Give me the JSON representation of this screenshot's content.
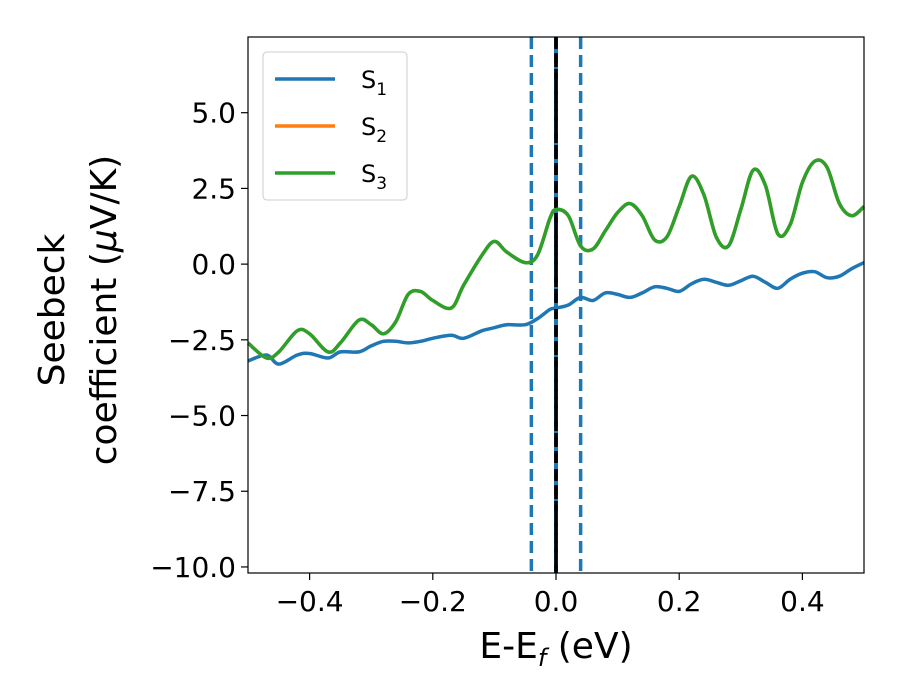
{
  "chart_data": {
    "type": "line",
    "xlabel": "E-E",
    "xlabel_sub": "f",
    "xlabel_unit": " (eV)",
    "ylabel_line1": "Seebeck",
    "ylabel_line2": "coefficient  (",
    "ylabel_mu": "μ",
    "ylabel_unit": "V/K)",
    "xlim": [
      -0.5,
      0.5
    ],
    "ylim": [
      -10.2,
      7.5
    ],
    "xticks": [
      -0.4,
      -0.2,
      0.0,
      0.2,
      0.4
    ],
    "xtick_labels": [
      "−0.4",
      "−0.2",
      "0.0",
      "0.2",
      "0.4"
    ],
    "yticks": [
      -10.0,
      -7.5,
      -5.0,
      -2.5,
      0.0,
      2.5,
      5.0
    ],
    "ytick_labels": [
      "−10.0",
      "−7.5",
      "−5.0",
      "−2.5",
      "0.0",
      "2.5",
      "5.0"
    ],
    "grid": false,
    "legend_position": "top-left",
    "vlines": [
      {
        "x": -0.04,
        "style": "dashed",
        "color": "#1f77b4"
      },
      {
        "x": 0.0,
        "style": "solid",
        "color": "#1f77b4"
      },
      {
        "x": 0.0,
        "style": "dashed",
        "color": "#000000"
      },
      {
        "x": 0.04,
        "style": "dashed",
        "color": "#1f77b4"
      }
    ],
    "series": [
      {
        "name": "S",
        "sub": "1",
        "color": "#1f77b4",
        "x": [
          -0.5,
          -0.47,
          -0.45,
          -0.42,
          -0.4,
          -0.37,
          -0.35,
          -0.32,
          -0.3,
          -0.28,
          -0.26,
          -0.24,
          -0.22,
          -0.2,
          -0.17,
          -0.15,
          -0.12,
          -0.1,
          -0.08,
          -0.05,
          -0.03,
          -0.01,
          0.0,
          0.02,
          0.04,
          0.06,
          0.08,
          0.1,
          0.12,
          0.14,
          0.16,
          0.18,
          0.2,
          0.22,
          0.24,
          0.26,
          0.28,
          0.3,
          0.32,
          0.34,
          0.36,
          0.38,
          0.4,
          0.42,
          0.44,
          0.46,
          0.48,
          0.5
        ],
        "y": [
          -3.2,
          -3.0,
          -3.3,
          -3.0,
          -2.95,
          -3.1,
          -2.9,
          -2.9,
          -2.7,
          -2.55,
          -2.55,
          -2.6,
          -2.55,
          -2.45,
          -2.35,
          -2.45,
          -2.2,
          -2.1,
          -2.0,
          -2.0,
          -1.8,
          -1.5,
          -1.45,
          -1.35,
          -1.1,
          -1.2,
          -0.95,
          -1.0,
          -1.1,
          -0.95,
          -0.75,
          -0.8,
          -0.9,
          -0.65,
          -0.5,
          -0.6,
          -0.7,
          -0.55,
          -0.4,
          -0.6,
          -0.8,
          -0.5,
          -0.3,
          -0.25,
          -0.45,
          -0.4,
          -0.15,
          0.05
        ]
      },
      {
        "name": "S",
        "sub": "2",
        "color": "#ff7f0e",
        "x": [
          -0.5,
          -0.47,
          -0.45,
          -0.42,
          -0.4,
          -0.37,
          -0.35,
          -0.32,
          -0.3,
          -0.28,
          -0.26,
          -0.24,
          -0.22,
          -0.2,
          -0.17,
          -0.15,
          -0.12,
          -0.1,
          -0.08,
          -0.05,
          -0.03,
          -0.01,
          0.0,
          0.02,
          0.04,
          0.06,
          0.08,
          0.1,
          0.12,
          0.14,
          0.16,
          0.18,
          0.2,
          0.22,
          0.24,
          0.26,
          0.28,
          0.3,
          0.32,
          0.34,
          0.36,
          0.38,
          0.4,
          0.42,
          0.44,
          0.46,
          0.48,
          0.5
        ],
        "y": [
          -2.6,
          -3.1,
          -2.9,
          -2.2,
          -2.3,
          -2.9,
          -2.6,
          -1.85,
          -2.0,
          -2.3,
          -1.9,
          -1.0,
          -0.9,
          -1.2,
          -1.45,
          -0.7,
          0.3,
          0.75,
          0.4,
          0.05,
          0.3,
          1.5,
          1.8,
          1.6,
          0.6,
          0.5,
          1.1,
          1.7,
          2.0,
          1.6,
          0.8,
          0.9,
          1.9,
          2.9,
          2.3,
          0.9,
          0.6,
          1.8,
          3.1,
          2.6,
          1.0,
          1.3,
          2.7,
          3.4,
          3.2,
          2.0,
          1.6,
          1.9
        ]
      },
      {
        "name": "S",
        "sub": "3",
        "color": "#2ca02c",
        "x": [
          -0.5,
          -0.47,
          -0.45,
          -0.42,
          -0.4,
          -0.37,
          -0.35,
          -0.32,
          -0.3,
          -0.28,
          -0.26,
          -0.24,
          -0.22,
          -0.2,
          -0.17,
          -0.15,
          -0.12,
          -0.1,
          -0.08,
          -0.05,
          -0.03,
          -0.01,
          0.0,
          0.02,
          0.04,
          0.06,
          0.08,
          0.1,
          0.12,
          0.14,
          0.16,
          0.18,
          0.2,
          0.22,
          0.24,
          0.26,
          0.28,
          0.3,
          0.32,
          0.34,
          0.36,
          0.38,
          0.4,
          0.42,
          0.44,
          0.46,
          0.48,
          0.5
        ],
        "y": [
          -2.6,
          -3.1,
          -2.9,
          -2.2,
          -2.3,
          -2.9,
          -2.6,
          -1.85,
          -2.0,
          -2.3,
          -1.9,
          -1.0,
          -0.9,
          -1.2,
          -1.45,
          -0.7,
          0.3,
          0.75,
          0.4,
          0.05,
          0.3,
          1.5,
          1.8,
          1.6,
          0.6,
          0.5,
          1.1,
          1.7,
          2.0,
          1.6,
          0.8,
          0.9,
          1.9,
          2.9,
          2.3,
          0.9,
          0.6,
          1.8,
          3.1,
          2.6,
          1.0,
          1.3,
          2.7,
          3.4,
          3.2,
          2.0,
          1.6,
          1.9
        ]
      }
    ]
  }
}
